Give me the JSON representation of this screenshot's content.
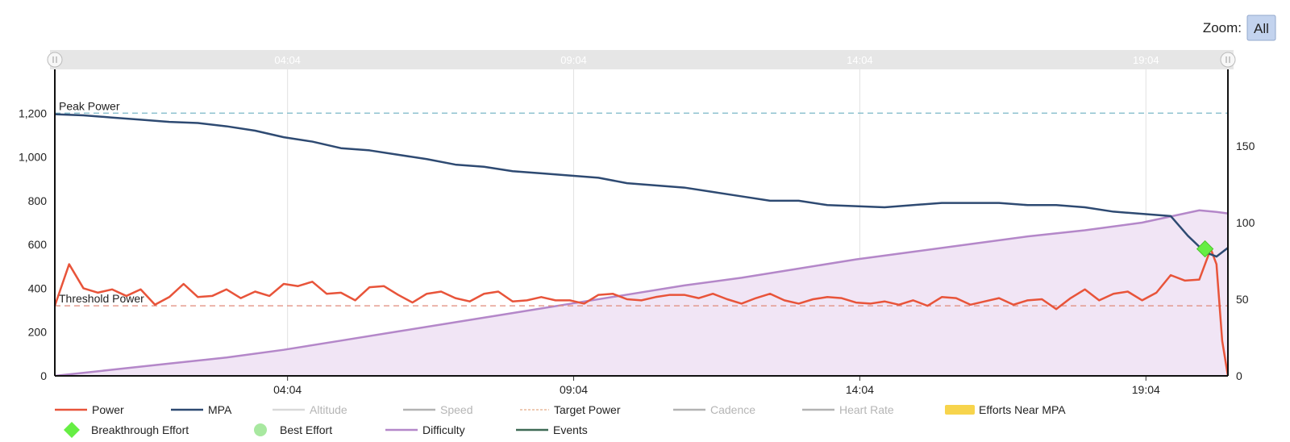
{
  "zoom": {
    "label": "Zoom:",
    "button": "All"
  },
  "chart_data": {
    "type": "line",
    "x_ticks": [
      "04:04",
      "09:04",
      "14:04",
      "19:04"
    ],
    "x_tick_minutes": [
      4.067,
      9.067,
      14.067,
      19.067
    ],
    "x_range_minutes": [
      0,
      20.5
    ],
    "y_left_ticks": [
      "0",
      "200",
      "400",
      "600",
      "800",
      "1,000",
      "1,200"
    ],
    "y_left_range": [
      0,
      1400
    ],
    "y_right_ticks": [
      "0",
      "50",
      "100",
      "150"
    ],
    "y_right_range": [
      0,
      200
    ],
    "plot_lines": [
      {
        "label": "Peak Power",
        "value": 1200,
        "color": "#7ab8c8"
      },
      {
        "label": "Threshold Power",
        "value": 320,
        "color": "#e08a7a"
      }
    ],
    "series": [
      {
        "name": "Power",
        "color": "#e8543a",
        "axis": "left",
        "x": [
          0,
          0.25,
          0.5,
          0.75,
          1.0,
          1.25,
          1.5,
          1.75,
          2.0,
          2.25,
          2.5,
          2.75,
          3.0,
          3.25,
          3.5,
          3.75,
          4.0,
          4.25,
          4.5,
          4.75,
          5.0,
          5.25,
          5.5,
          5.75,
          6.0,
          6.25,
          6.5,
          6.75,
          7.0,
          7.25,
          7.5,
          7.75,
          8.0,
          8.25,
          8.5,
          8.75,
          9.0,
          9.25,
          9.5,
          9.75,
          10.0,
          10.25,
          10.5,
          10.75,
          11.0,
          11.25,
          11.5,
          11.75,
          12.0,
          12.25,
          12.5,
          12.75,
          13.0,
          13.25,
          13.5,
          13.75,
          14.0,
          14.25,
          14.5,
          14.75,
          15.0,
          15.25,
          15.5,
          15.75,
          16.0,
          16.25,
          16.5,
          16.75,
          17.0,
          17.25,
          17.5,
          17.75,
          18.0,
          18.25,
          18.5,
          18.75,
          19.0,
          19.25,
          19.5,
          19.75,
          20.0,
          20.2,
          20.3,
          20.4,
          20.5
        ],
        "y": [
          320,
          510,
          400,
          380,
          395,
          365,
          395,
          325,
          360,
          420,
          360,
          365,
          395,
          355,
          385,
          365,
          420,
          410,
          430,
          375,
          380,
          345,
          405,
          410,
          370,
          335,
          375,
          385,
          355,
          340,
          375,
          385,
          340,
          345,
          360,
          345,
          345,
          330,
          370,
          375,
          350,
          345,
          360,
          370,
          370,
          355,
          375,
          350,
          330,
          355,
          375,
          345,
          330,
          350,
          360,
          355,
          335,
          330,
          340,
          325,
          345,
          320,
          360,
          355,
          325,
          340,
          355,
          325,
          345,
          350,
          305,
          355,
          395,
          345,
          375,
          385,
          345,
          380,
          460,
          435,
          440,
          580,
          510,
          160,
          0
        ]
      },
      {
        "name": "MPA",
        "color": "#2e4a72",
        "axis": "left",
        "x": [
          0,
          0.5,
          1.0,
          1.5,
          2.0,
          2.5,
          3.0,
          3.5,
          4.0,
          4.5,
          5.0,
          5.5,
          6.0,
          6.5,
          7.0,
          7.5,
          8.0,
          8.5,
          9.0,
          9.5,
          10.0,
          10.5,
          11.0,
          11.5,
          12.0,
          12.5,
          13.0,
          13.5,
          14.0,
          14.5,
          15.0,
          15.5,
          16.0,
          16.5,
          17.0,
          17.5,
          18.0,
          18.5,
          19.0,
          19.5,
          19.8,
          20.1,
          20.3,
          20.5
        ],
        "y": [
          1195,
          1190,
          1180,
          1170,
          1160,
          1155,
          1140,
          1120,
          1090,
          1070,
          1040,
          1030,
          1010,
          990,
          965,
          955,
          935,
          925,
          915,
          905,
          880,
          870,
          860,
          840,
          820,
          800,
          800,
          780,
          775,
          770,
          780,
          790,
          790,
          790,
          780,
          780,
          770,
          750,
          740,
          730,
          640,
          565,
          545,
          585
        ]
      },
      {
        "name": "Difficulty",
        "color": "#b487c9",
        "axis": "right",
        "fill": "#f1e5f5",
        "x": [
          0,
          1,
          2,
          3,
          4,
          5,
          6,
          7,
          8,
          9,
          10,
          11,
          12,
          13,
          14,
          15,
          16,
          17,
          18,
          19,
          19.5,
          20.0,
          20.3,
          20.5
        ],
        "y": [
          0,
          4,
          8,
          12,
          17,
          23,
          29,
          35,
          41,
          47,
          53,
          59,
          64,
          70,
          76,
          81,
          86,
          91,
          95,
          100,
          104,
          108,
          107,
          106
        ]
      }
    ],
    "markers": [
      {
        "name": "Breakthrough Effort",
        "x": 20.1,
        "y": 580,
        "color": "#66ee44"
      }
    ],
    "legend": [
      {
        "name": "Power",
        "color": "#e8543a",
        "kind": "line",
        "active": true
      },
      {
        "name": "MPA",
        "color": "#2e4a72",
        "kind": "line",
        "active": true
      },
      {
        "name": "Altitude",
        "color": "#d9d9d9",
        "kind": "line",
        "active": false
      },
      {
        "name": "Speed",
        "color": "#b3b3b3",
        "kind": "line",
        "active": false
      },
      {
        "name": "Target Power",
        "color": "#e8b89a",
        "kind": "dash",
        "active": true
      },
      {
        "name": "Cadence",
        "color": "#b3b3b3",
        "kind": "line",
        "active": false
      },
      {
        "name": "Heart Rate",
        "color": "#b3b3b3",
        "kind": "line",
        "active": false
      },
      {
        "name": "Efforts Near MPA",
        "color": "#f7d44c",
        "kind": "rect",
        "active": true
      },
      {
        "name": "Breakthrough Effort",
        "color": "#66ee44",
        "kind": "diamond",
        "active": true
      },
      {
        "name": "Best Effort",
        "color": "#a8e8a0",
        "kind": "circle",
        "active": true
      },
      {
        "name": "Difficulty",
        "color": "#b487c9",
        "kind": "line",
        "active": true
      },
      {
        "name": "Events",
        "color": "#3e6a55",
        "kind": "line",
        "active": true
      }
    ]
  }
}
